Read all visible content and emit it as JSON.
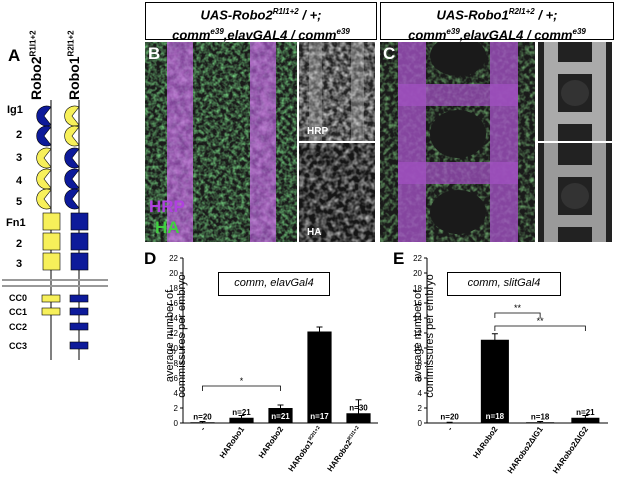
{
  "panels": {
    "A": "A",
    "B": "B",
    "C": "C",
    "D": "D",
    "E": "E"
  },
  "schematic": {
    "robo2_label": "Robo2",
    "robo2_sup": "R1I1+2",
    "robo1_label": "Robo1",
    "robo1_sup": "R2I1+2",
    "domain_labels": [
      "Ig1",
      "2",
      "3",
      "4",
      "5",
      "Fn1",
      "2",
      "3",
      "CC0",
      "CC1",
      "CC2",
      "CC3"
    ],
    "colors": {
      "yellow": "#f7f05a",
      "blue": "#0d1a9a"
    }
  },
  "header_b": {
    "line1_pre": "UAS-Robo2",
    "line1_sup": "R1I1+2",
    "line1_post": " / +;",
    "line2_a": "comm",
    "line2_sup_a": "e39",
    "line2_b": ",elavGAL4 / comm",
    "line2_sup_b": "e39"
  },
  "header_c": {
    "line1_pre": "UAS-Robo1",
    "line1_sup": "R2I1+2",
    "line1_post": " / +;",
    "line2_a": "comm",
    "line2_sup_a": "e39",
    "line2_b": ",elavGAL4 / comm",
    "line2_sup_b": "e39"
  },
  "micro_labels": {
    "hrp_main": "HRP",
    "ha_main": "HA",
    "hrp_inset": "HRP",
    "ha_inset": "HA",
    "hrp_color": "#b040e0",
    "ha_color": "#40d040"
  },
  "chart_data": [
    {
      "type": "bar",
      "panel": "D",
      "legend_text": "comm, elavGal4",
      "ylabel": "average number of commissures per embryo",
      "ylim": [
        0,
        22
      ],
      "yticks": [
        0,
        2,
        4,
        6,
        8,
        10,
        12,
        14,
        16,
        18,
        20,
        22
      ],
      "categories": [
        "-",
        "HARobo1",
        "HARobo2",
        "HARobo1R2I1+2",
        "HARobo2R1I1+2"
      ],
      "category_labels": [
        {
          "main": "-",
          "sup": ""
        },
        {
          "main": "HARobo1",
          "sup": ""
        },
        {
          "main": "HARobo2",
          "sup": ""
        },
        {
          "main": "HARobo1",
          "sup": "R2I1+2"
        },
        {
          "main": "HARobo2",
          "sup": "R1I1+2"
        }
      ],
      "values": [
        0.1,
        0.7,
        2.0,
        12.2,
        1.3
      ],
      "errors": [
        0.1,
        0.3,
        0.4,
        0.6,
        1.8
      ],
      "n_labels": [
        "n=20",
        "n=21",
        "n=21",
        "n=17",
        "n=30"
      ],
      "significance": [
        {
          "from": 0,
          "to": 2,
          "label": "*"
        }
      ]
    },
    {
      "type": "bar",
      "panel": "E",
      "legend_text": "comm, slitGal4",
      "ylabel": "average number of commissures per embryo",
      "ylim": [
        0,
        22
      ],
      "yticks": [
        0,
        2,
        4,
        6,
        8,
        10,
        12,
        14,
        16,
        18,
        20,
        22
      ],
      "categories": [
        "-",
        "HARobo2",
        "HARobo2ΔIG1",
        "HARobo2ΔIG2"
      ],
      "category_labels": [
        {
          "main": "-",
          "sup": ""
        },
        {
          "main": "HARobo2",
          "sup": ""
        },
        {
          "main": "HARobo2ΔIG1",
          "sup": ""
        },
        {
          "main": "HARobo2ΔIG2",
          "sup": ""
        }
      ],
      "values": [
        0.05,
        11.1,
        0.1,
        0.7
      ],
      "errors": [
        0.05,
        0.8,
        0.1,
        0.3
      ],
      "n_labels": [
        "n=20",
        "n=18",
        "n=18",
        "n=21"
      ],
      "significance": [
        {
          "from": 1,
          "to": 2,
          "label": "**"
        },
        {
          "from": 1,
          "to": 3,
          "label": "**"
        }
      ]
    }
  ]
}
